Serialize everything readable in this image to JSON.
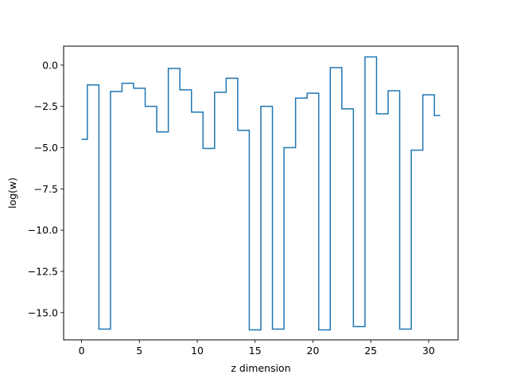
{
  "chart_data": {
    "type": "line",
    "drawstyle": "steps-mid",
    "title": "",
    "xlabel": "z dimension",
    "ylabel": "log(w)",
    "xlim": [
      -1.55,
      32.55
    ],
    "ylim": [
      -16.65,
      1.15
    ],
    "x_ticks": [
      0,
      5,
      10,
      15,
      20,
      25,
      30
    ],
    "x_tick_labels": [
      "0",
      "5",
      "10",
      "15",
      "20",
      "25",
      "30"
    ],
    "y_ticks": [
      0.0,
      -2.5,
      -5.0,
      -7.5,
      -10.0,
      -12.5,
      -15.0
    ],
    "y_tick_labels": [
      "0.0",
      "−2.5",
      "−5.0",
      "−7.5",
      "−10.0",
      "−12.5",
      "−15.0"
    ],
    "grid": false,
    "legend": "none",
    "series": [
      {
        "color": "#1f77b4",
        "x": [
          0,
          1,
          2,
          3,
          4,
          5,
          6,
          7,
          8,
          9,
          10,
          11,
          12,
          13,
          14,
          15,
          16,
          17,
          18,
          19,
          20,
          21,
          22,
          23,
          24,
          25,
          26,
          27,
          28,
          29,
          30,
          31
        ],
        "values": [
          -4.5,
          -1.2,
          -16.0,
          -1.6,
          -1.1,
          -1.4,
          -2.5,
          -4.05,
          -0.2,
          -1.5,
          -2.85,
          -5.05,
          -1.65,
          -0.8,
          -3.95,
          -16.05,
          -2.5,
          -16.0,
          -5.0,
          -2.0,
          -1.7,
          -16.05,
          -0.15,
          -2.65,
          -15.85,
          0.5,
          -2.95,
          -1.55,
          -16.0,
          -5.15,
          -1.8,
          -3.05
        ]
      }
    ]
  }
}
